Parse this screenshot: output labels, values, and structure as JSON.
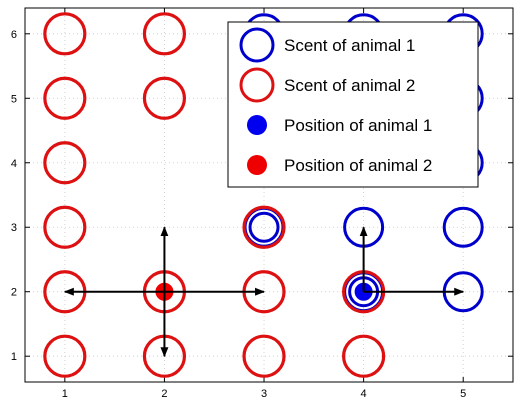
{
  "chart_data": {
    "type": "scatter",
    "title": "",
    "xlabel": "",
    "ylabel": "",
    "xlim": [
      0.6,
      5.5
    ],
    "ylim": [
      0.6,
      6.4
    ],
    "xticks": [
      1,
      2,
      3,
      4,
      5
    ],
    "yticks": [
      1,
      2,
      3,
      4,
      5,
      6
    ],
    "grid": true,
    "legend_placement": "top-right",
    "legend": [
      {
        "label": "Scent of animal 1",
        "marker": "open-circle",
        "color": "#0000cc"
      },
      {
        "label": "Scent of animal 2",
        "marker": "open-circle",
        "color": "#dd1111"
      },
      {
        "label": "Position of animal 1",
        "marker": "filled-circle",
        "color": "#0000ee"
      },
      {
        "label": "Position of animal 2",
        "marker": "filled-circle",
        "color": "#ee0000"
      }
    ],
    "series": [
      {
        "name": "Scent of animal 1",
        "marker": "open-circle",
        "color": "#0000cc",
        "points": [
          {
            "x": 3,
            "y": 6
          },
          {
            "x": 4,
            "y": 6
          },
          {
            "x": 5,
            "y": 6
          },
          {
            "x": 5,
            "y": 5
          },
          {
            "x": 5,
            "y": 4
          },
          {
            "x": 3,
            "y": 3
          },
          {
            "x": 4,
            "y": 3
          },
          {
            "x": 5,
            "y": 3
          },
          {
            "x": 4,
            "y": 2
          },
          {
            "x": 5,
            "y": 2
          }
        ]
      },
      {
        "name": "Scent of animal 2",
        "marker": "open-circle",
        "color": "#dd1111",
        "points": [
          {
            "x": 1,
            "y": 6
          },
          {
            "x": 2,
            "y": 6
          },
          {
            "x": 1,
            "y": 5
          },
          {
            "x": 2,
            "y": 5
          },
          {
            "x": 1,
            "y": 4
          },
          {
            "x": 1,
            "y": 3
          },
          {
            "x": 3,
            "y": 3
          },
          {
            "x": 1,
            "y": 2
          },
          {
            "x": 2,
            "y": 2
          },
          {
            "x": 3,
            "y": 2
          },
          {
            "x": 4,
            "y": 2
          },
          {
            "x": 1,
            "y": 1
          },
          {
            "x": 2,
            "y": 1
          },
          {
            "x": 3,
            "y": 1
          },
          {
            "x": 4,
            "y": 1
          }
        ]
      },
      {
        "name": "Position of animal 1",
        "marker": "filled-circle",
        "color": "#0000ee",
        "points": [
          {
            "x": 4,
            "y": 2
          }
        ]
      },
      {
        "name": "Position of animal 2",
        "marker": "filled-circle",
        "color": "#ee0000",
        "points": [
          {
            "x": 2,
            "y": 2
          }
        ]
      }
    ],
    "arrows": [
      {
        "from": [
          2,
          2
        ],
        "to": [
          1,
          2
        ]
      },
      {
        "from": [
          2,
          2
        ],
        "to": [
          3,
          2
        ]
      },
      {
        "from": [
          2,
          2
        ],
        "to": [
          2,
          3
        ]
      },
      {
        "from": [
          2,
          2
        ],
        "to": [
          2,
          1
        ]
      },
      {
        "from": [
          4,
          2
        ],
        "to": [
          5,
          2
        ]
      },
      {
        "from": [
          4,
          2
        ],
        "to": [
          4,
          3
        ]
      }
    ]
  }
}
